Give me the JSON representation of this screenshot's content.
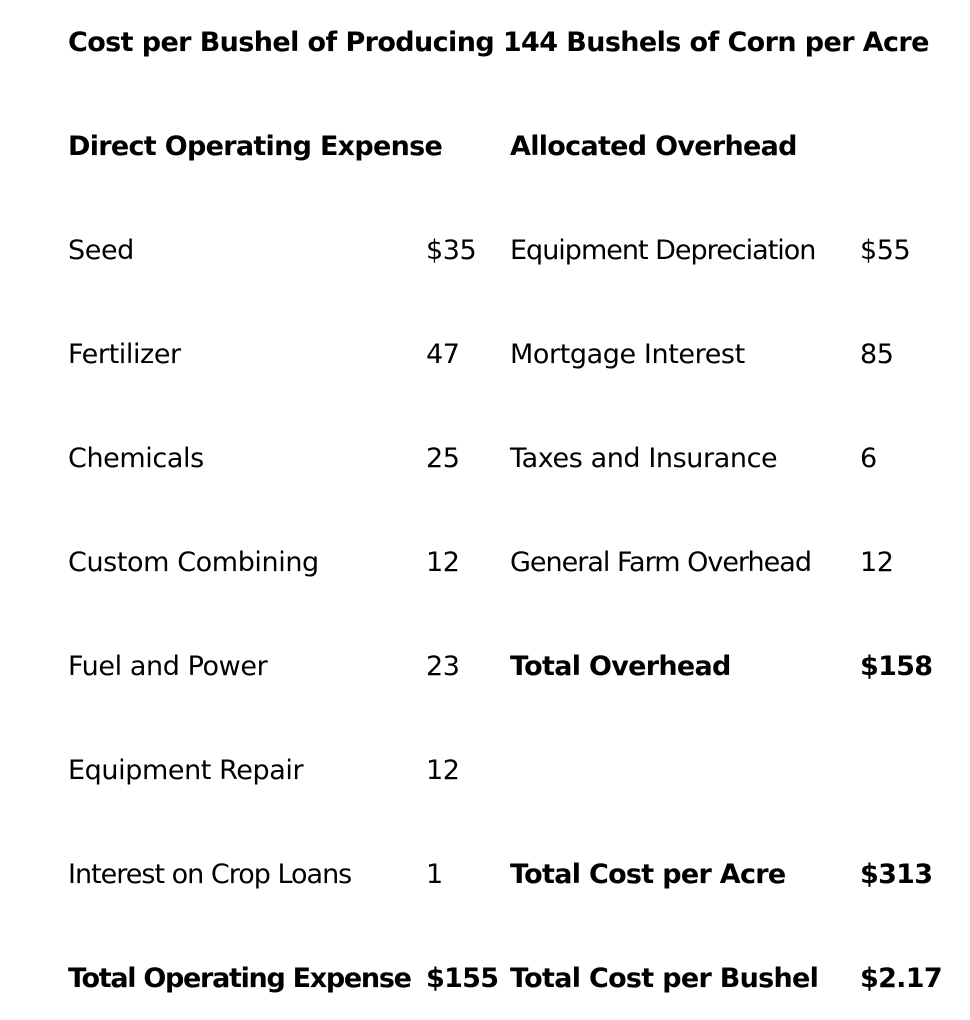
{
  "title": "Cost per Bushel of Producing 144 Bushels of Corn per Acre",
  "left_header": "Direct Operating Expense",
  "right_header": "Allocated Overhead",
  "direct_items": [
    {
      "label": "Seed",
      "value": "$35"
    },
    {
      "label": "Fertilizer",
      "value": "47"
    },
    {
      "label": "Chemicals",
      "value": "25"
    },
    {
      "label": "Custom Combining",
      "value": "12"
    },
    {
      "label": "Fuel and Power",
      "value": "23"
    },
    {
      "label": "Equipment Repair",
      "value": "12"
    },
    {
      "label": "Interest on Crop Loans",
      "value": "1"
    }
  ],
  "direct_total": {
    "label": "Total Operating Expense",
    "value": "$155"
  },
  "overhead_items": [
    {
      "label": "Equipment Depreciation",
      "value": "$55"
    },
    {
      "label": "Mortgage Interest",
      "value": "85"
    },
    {
      "label": "Taxes and Insurance",
      "value": "6"
    },
    {
      "label": "General Farm Overhead",
      "value": "12"
    }
  ],
  "overhead_total": {
    "label": "Total Overhead",
    "value": "$158"
  },
  "cost_per_acre": {
    "label": "Total Cost per Acre",
    "value": "$313"
  },
  "cost_per_bushel": {
    "label": "Total Cost per Bushel",
    "value": "$2.17"
  }
}
